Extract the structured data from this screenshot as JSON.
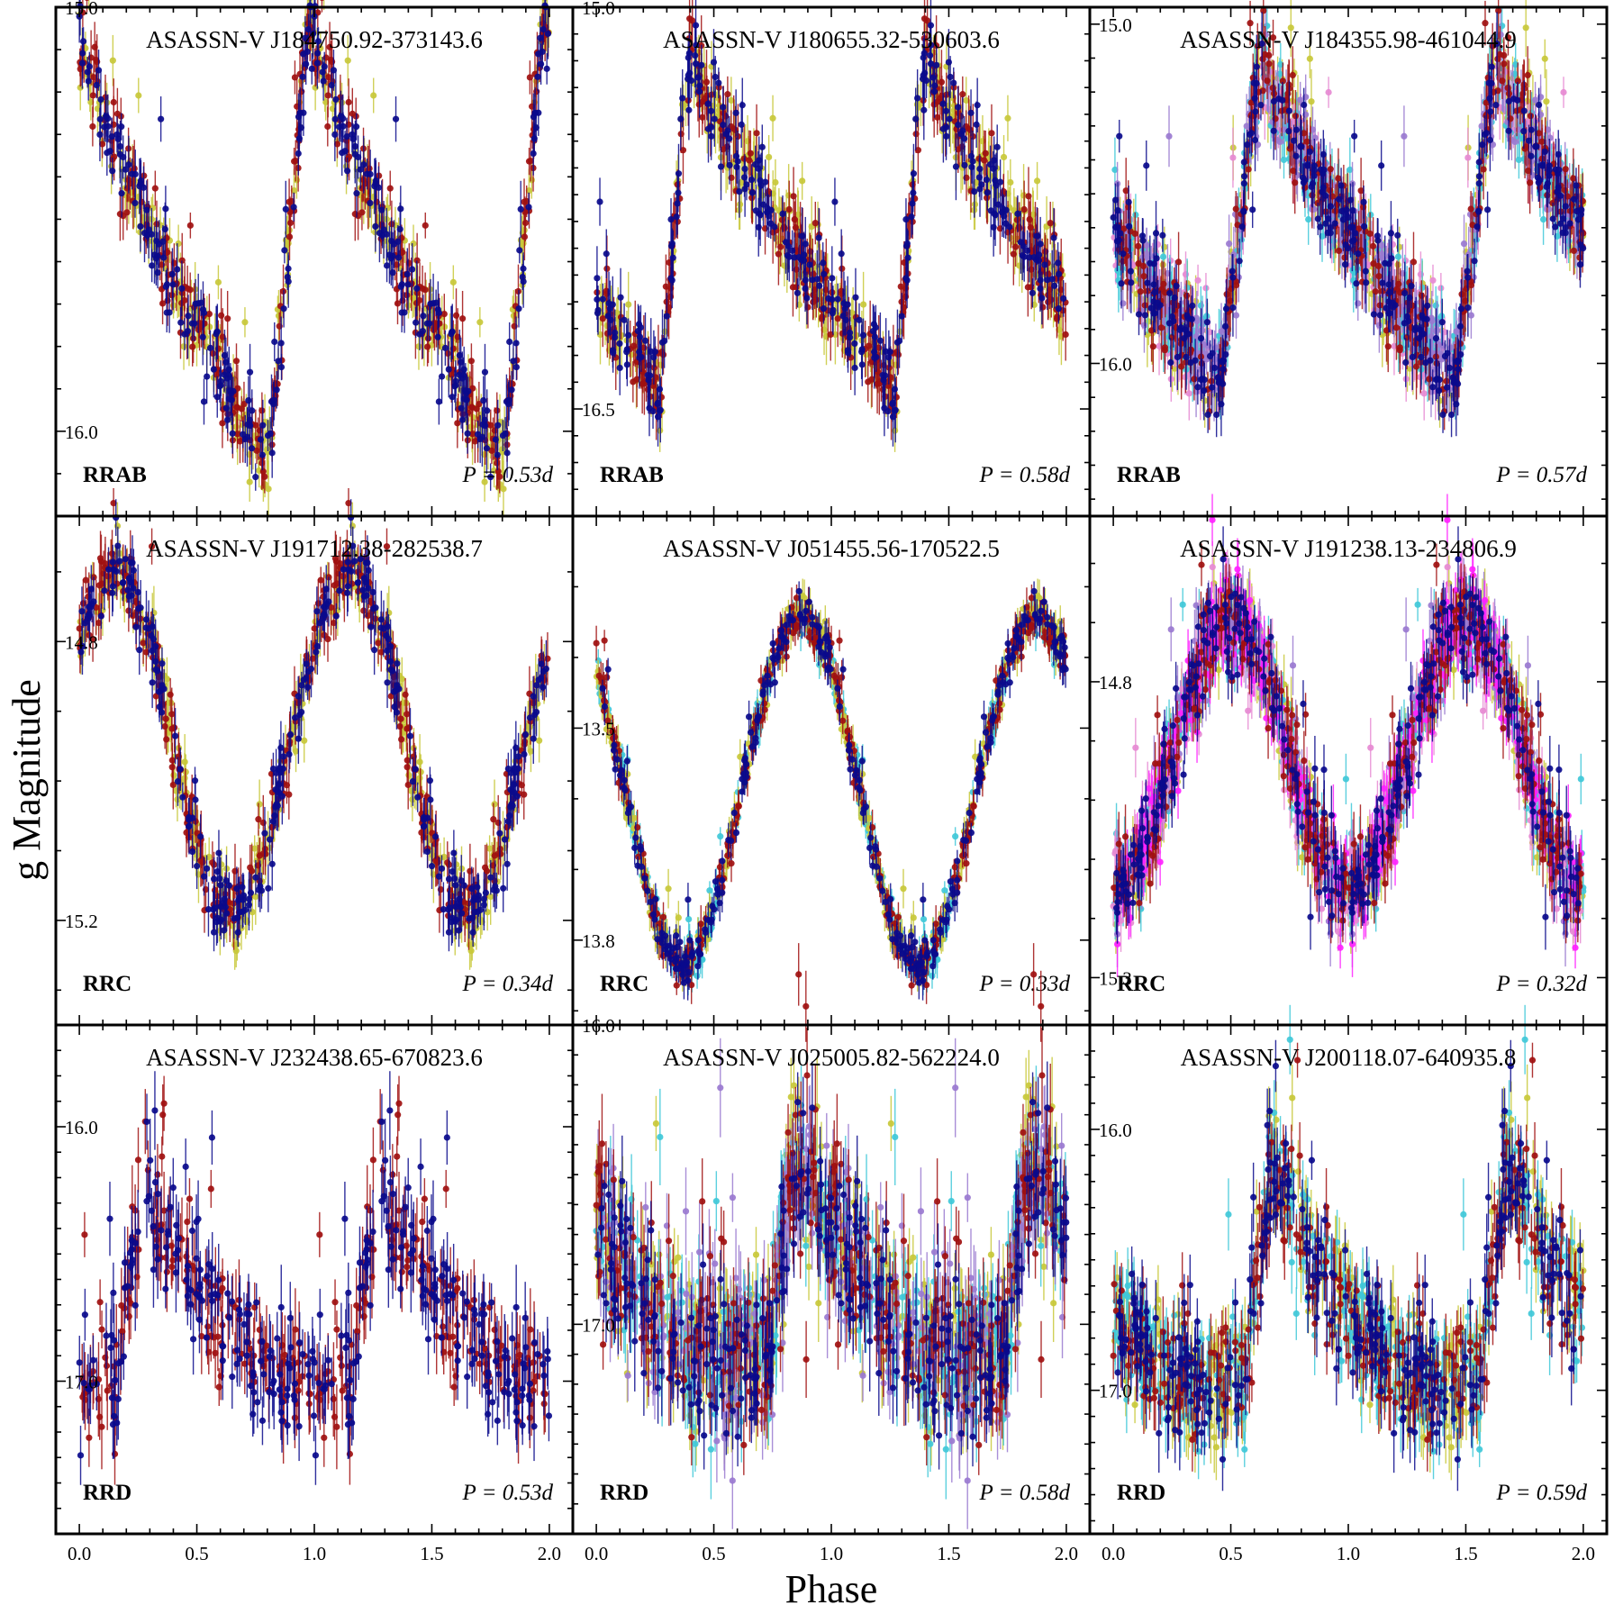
{
  "figure": {
    "xlabel": "Phase",
    "ylabel": "g  Magnitude",
    "x_ticks": [
      "0.0",
      "0.5",
      "1.0",
      "1.5",
      "2.0"
    ],
    "y_inverted": true
  },
  "palette": {
    "navy": "#0a0a8c",
    "darkred": "#a01010",
    "olive": "#c8c83a",
    "cyan": "#40c8d8",
    "pink": "#e68ad2",
    "purple": "#9a7ad0",
    "magenta": "#ff22ff"
  },
  "chart_data": [
    {
      "type": "scatter",
      "title": "ASASSN-V J184750.92-373143.6",
      "class": "RRAB",
      "period": "P = 0.53d",
      "xlim": [
        -0.1,
        2.1
      ],
      "ylim": [
        15.0,
        16.2
      ],
      "y_ticks": [
        {
          "value": 15.0,
          "label": "15.0"
        },
        {
          "value": 16.0,
          "label": "16.0"
        }
      ],
      "series_colors": [
        "olive",
        "darkred",
        "navy"
      ],
      "profile": "rrab",
      "max_mag": 15.02,
      "min_mag": 16.08,
      "rise_start": 0.8,
      "rise_end": 0.98,
      "noise": 0.05,
      "err": 0.05
    },
    {
      "type": "scatter",
      "title": "ASASSN-V J180655.32-530603.6",
      "class": "RRAB",
      "period": "P = 0.58d",
      "xlim": [
        -0.1,
        2.1
      ],
      "ylim": [
        15.0,
        16.9
      ],
      "y_ticks": [
        {
          "value": 15.0,
          "label": "15.0"
        },
        {
          "value": 16.5,
          "label": "16.5"
        }
      ],
      "series_colors": [
        "olive",
        "darkred",
        "navy"
      ],
      "profile": "rrab",
      "max_mag": 15.15,
      "min_mag": 16.42,
      "rise_start": 0.27,
      "rise_end": 0.4,
      "noise": 0.08,
      "err": 0.09
    },
    {
      "type": "scatter",
      "title": "ASASSN-V J184355.98-461044.9",
      "class": "RRAB",
      "period": "P = 0.57d",
      "xlim": [
        -0.1,
        2.1
      ],
      "ylim": [
        14.95,
        16.45
      ],
      "y_ticks": [
        {
          "value": 15.0,
          "label": "15.0"
        },
        {
          "value": 16.0,
          "label": "16.0"
        }
      ],
      "series_colors": [
        "olive",
        "pink",
        "cyan",
        "purple",
        "darkred",
        "navy"
      ],
      "profile": "rrab",
      "max_mag": 15.1,
      "min_mag": 16.05,
      "rise_start": 0.45,
      "rise_end": 0.63,
      "noise": 0.07,
      "err": 0.07
    },
    {
      "type": "scatter",
      "title": "ASASSN-V J191712.38-282538.7",
      "class": "RRC",
      "period": "P = 0.34d",
      "xlim": [
        -0.1,
        2.1
      ],
      "ylim": [
        14.62,
        15.35
      ],
      "y_ticks": [
        {
          "value": 14.8,
          "label": "14.8"
        },
        {
          "value": 15.2,
          "label": "15.2"
        }
      ],
      "series_colors": [
        "olive",
        "darkred",
        "navy"
      ],
      "profile": "rrc",
      "max_mag": 14.7,
      "min_mag": 15.19,
      "min_phase": 0.65,
      "noise": 0.025,
      "err": 0.03
    },
    {
      "type": "scatter",
      "title": "ASASSN-V J051455.56-170522.5",
      "class": "RRC",
      "period": "P = 0.33d",
      "xlim": [
        -0.1,
        2.1
      ],
      "ylim": [
        13.2,
        13.92
      ],
      "y_ticks": [
        {
          "value": 13.5,
          "label": "13.5"
        },
        {
          "value": 13.8,
          "label": "13.8"
        }
      ],
      "series_colors": [
        "cyan",
        "olive",
        "darkred",
        "navy"
      ],
      "profile": "rrc",
      "max_mag": 13.34,
      "min_mag": 13.83,
      "min_phase": 0.37,
      "noise": 0.015,
      "err": 0.02
    },
    {
      "type": "scatter",
      "title": "ASASSN-V J191238.13-234806.9",
      "class": "RRC",
      "period": "P = 0.32d",
      "xlim": [
        -0.1,
        2.1
      ],
      "ylim": [
        14.52,
        15.38
      ],
      "y_ticks": [
        {
          "value": 14.8,
          "label": "14.8"
        },
        {
          "value": 15.3,
          "label": "15.3"
        }
      ],
      "series_colors": [
        "olive",
        "cyan",
        "purple",
        "pink",
        "magenta",
        "darkred",
        "navy"
      ],
      "profile": "rrc",
      "max_mag": 14.7,
      "min_mag": 15.15,
      "min_phase": 0.0,
      "noise": 0.04,
      "err": 0.04
    },
    {
      "type": "scatter",
      "title": "ASASSN-V J232438.65-670823.6",
      "class": "RRD",
      "period": "P = 0.53d",
      "xlim": [
        -0.1,
        2.1
      ],
      "ylim": [
        15.6,
        17.6
      ],
      "y_ticks": [
        {
          "value": 16.0,
          "label": "16.0"
        },
        {
          "value": 17.0,
          "label": "17.0"
        }
      ],
      "series_colors": [
        "darkred",
        "navy"
      ],
      "profile": "rrd",
      "max_mag": 16.15,
      "min_mag": 17.0,
      "peak_phase": 0.28,
      "noise": 0.12,
      "err": 0.12
    },
    {
      "type": "scatter",
      "title": "ASASSN-V J025005.82-562224.0",
      "class": "RRD",
      "period": "P = 0.58d",
      "xlim": [
        -0.1,
        2.1
      ],
      "ylim": [
        16.0,
        17.7
      ],
      "y_ticks": [
        {
          "value": 16.0,
          "label": "16.0"
        },
        {
          "value": 17.0,
          "label": "17.0"
        }
      ],
      "series_colors": [
        "olive",
        "cyan",
        "purple",
        "darkred",
        "navy"
      ],
      "profile": "rrd",
      "max_mag": 16.4,
      "min_mag": 17.1,
      "peak_phase": 0.85,
      "noise": 0.14,
      "err": 0.12
    },
    {
      "type": "scatter",
      "title": "ASASSN-V J200118.07-640935.8",
      "class": "RRD",
      "period": "P = 0.59d",
      "xlim": [
        -0.1,
        2.1
      ],
      "ylim": [
        15.6,
        17.55
      ],
      "y_ticks": [
        {
          "value": 16.0,
          "label": "16.0"
        },
        {
          "value": 17.0,
          "label": "17.0"
        }
      ],
      "series_colors": [
        "olive",
        "cyan",
        "darkred",
        "navy"
      ],
      "profile": "rrd",
      "max_mag": 16.1,
      "min_mag": 16.95,
      "peak_phase": 0.68,
      "noise": 0.12,
      "err": 0.11
    }
  ]
}
